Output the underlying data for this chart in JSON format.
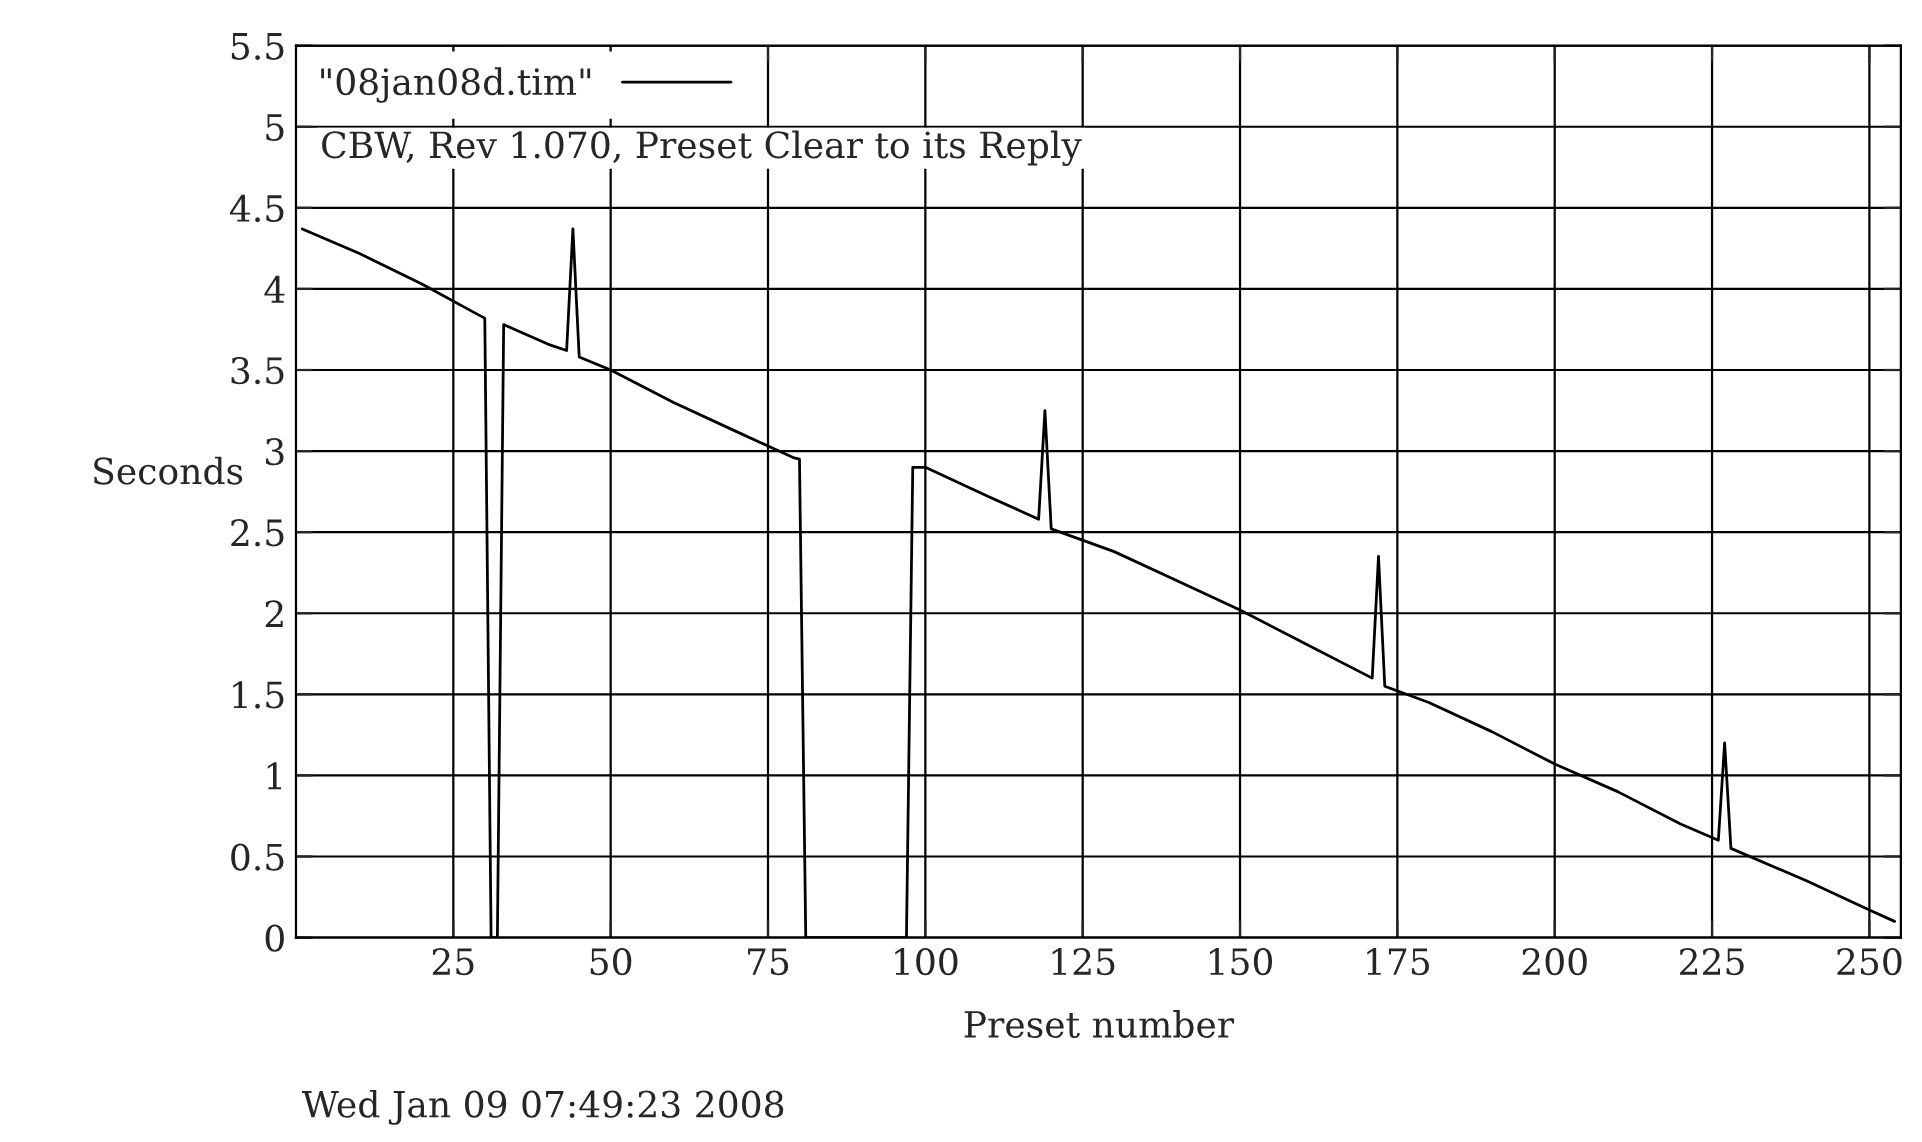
{
  "chart_data": {
    "type": "line",
    "xlabel": "Preset number",
    "ylabel": "Seconds",
    "x": [
      1,
      10,
      20,
      29,
      30,
      31,
      32,
      33,
      40,
      43,
      44,
      45,
      50,
      60,
      70,
      79,
      80,
      81,
      97,
      98,
      100,
      110,
      118,
      119,
      120,
      130,
      140,
      150,
      160,
      171,
      172,
      173,
      180,
      190,
      200,
      210,
      220,
      226,
      227,
      228,
      240,
      250,
      254
    ],
    "series": [
      {
        "name": "\"08jan08d.tim\"",
        "color": "#000000",
        "values": [
          4.37,
          4.22,
          4.03,
          3.84,
          3.82,
          0,
          0,
          3.78,
          3.66,
          3.62,
          4.37,
          3.58,
          3.5,
          3.3,
          3.12,
          2.96,
          2.95,
          0,
          0,
          2.9,
          2.9,
          2.72,
          2.58,
          3.25,
          2.52,
          2.38,
          2.2,
          2.02,
          1.82,
          1.6,
          2.35,
          1.55,
          1.45,
          1.27,
          1.07,
          0.9,
          0.7,
          0.6,
          1.2,
          0.55,
          0.35,
          0.17,
          0.1
        ]
      }
    ],
    "xlim": [
      0,
      255
    ],
    "ylim": [
      0,
      5.5
    ],
    "xticks": [
      25,
      50,
      75,
      100,
      125,
      150,
      175,
      200,
      225,
      250
    ],
    "yticks": [
      0,
      0.5,
      1,
      1.5,
      2,
      2.5,
      3,
      3.5,
      4,
      4.5,
      5,
      5.5
    ],
    "grid": true,
    "legend": "top left",
    "marker": "none",
    "line_style": "solid",
    "annotations": [
      "CBW, Rev 1.070, Preset Clear to its Reply",
      "Wed Jan 09 07:49:23 2008"
    ]
  }
}
